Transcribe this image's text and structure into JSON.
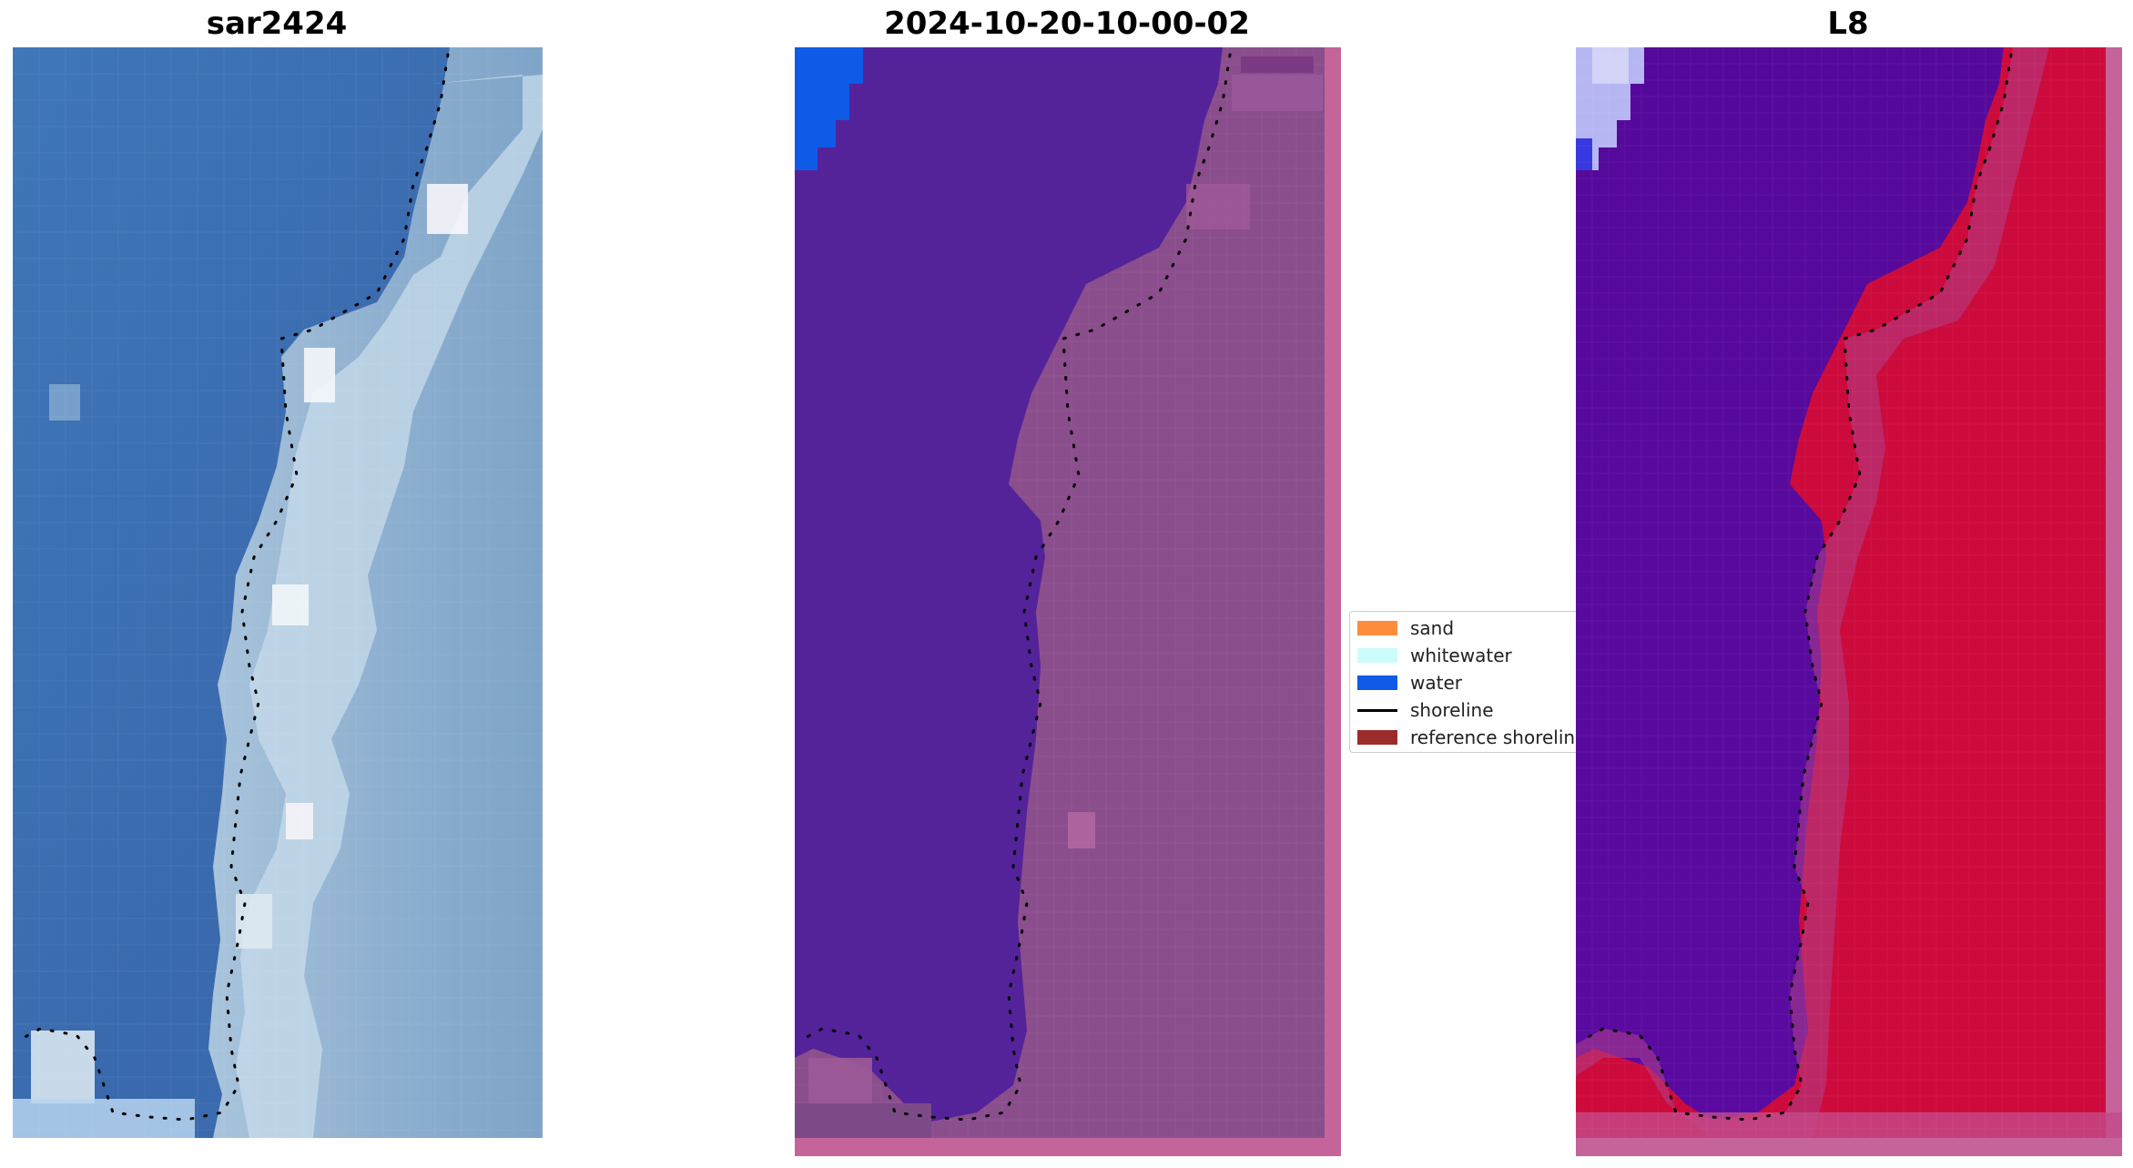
{
  "figure": {
    "panels": [
      {
        "title": "sar2424",
        "kind": "rgb"
      },
      {
        "title": "2024-10-20-10-00-02",
        "kind": "classified"
      },
      {
        "title": "L8",
        "kind": "ndwi"
      }
    ],
    "legend": {
      "items": [
        {
          "label": "sand",
          "color": "#fd8d3c",
          "type": "patch"
        },
        {
          "label": "whitewater",
          "color": "#ccfcfc",
          "type": "patch"
        },
        {
          "label": "water",
          "color": "#0f5ae6",
          "type": "patch"
        },
        {
          "label": "shoreline",
          "color": "#000000",
          "type": "line"
        },
        {
          "label": "reference shoreline",
          "color": "#9b2c2c",
          "type": "patch"
        }
      ]
    },
    "colors": {
      "sea_blue": "#3a6fb0",
      "classified_water": "#54239a",
      "classified_land": "#8a4e8c",
      "ndwi_water": "#55099a",
      "ndwi_land": "#cc0a3c",
      "frame_pink": "#c4649a"
    }
  }
}
